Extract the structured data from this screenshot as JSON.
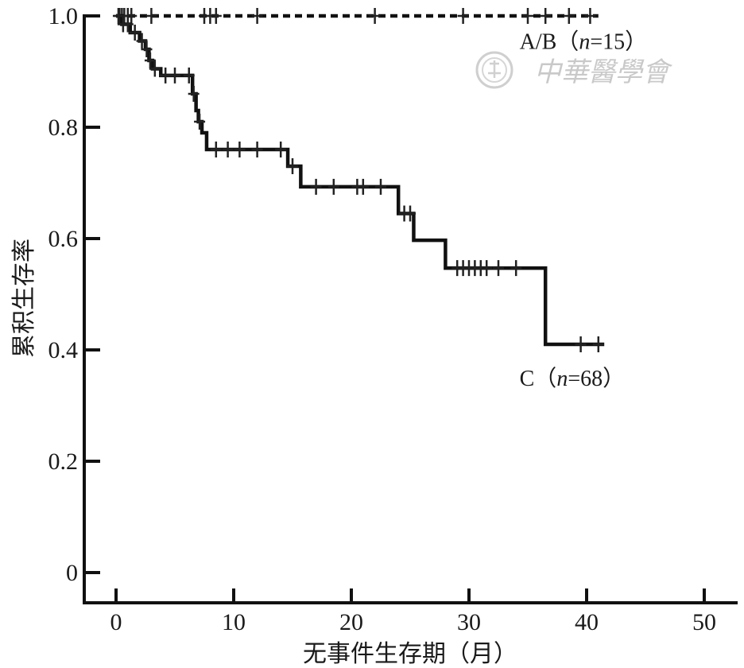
{
  "chart_data": {
    "type": "line",
    "subtype": "kaplan-meier",
    "xlabel": "无事件生存期（月）",
    "ylabel": "累积生存率",
    "xlim": [
      -2,
      51
    ],
    "ylim": [
      -0.06,
      1.0
    ],
    "x_ticks": [
      0,
      10,
      20,
      30,
      40,
      50
    ],
    "x_tick_labels": [
      "0",
      "10",
      "20",
      "30",
      "40",
      "50"
    ],
    "y_ticks": [
      0,
      0.2,
      0.4,
      0.6,
      0.8,
      1.0
    ],
    "y_tick_labels": [
      "0",
      "0.2",
      "0.4",
      "0.6",
      "0.8",
      "1.0"
    ],
    "grid": false,
    "series": [
      {
        "name": "A/B（n=15）",
        "line_style": "dashed",
        "color": "#111111",
        "steps": [
          [
            0,
            1.0
          ],
          [
            41,
            1.0
          ]
        ],
        "censored": [
          [
            0.3,
            1.0
          ],
          [
            0.5,
            1.0
          ],
          [
            0.7,
            1.0
          ],
          [
            1.0,
            1.0
          ],
          [
            1.3,
            1.0
          ],
          [
            3.0,
            1.0
          ],
          [
            7.5,
            1.0
          ],
          [
            8.0,
            1.0
          ],
          [
            8.5,
            1.0
          ],
          [
            12,
            1.0
          ],
          [
            22,
            1.0
          ],
          [
            29.5,
            1.0
          ],
          [
            35,
            1.0
          ],
          [
            36.5,
            1.0
          ],
          [
            38.5,
            1.0
          ],
          [
            40.3,
            1.0
          ]
        ]
      },
      {
        "name": "C（n=68）",
        "line_style": "solid",
        "color": "#111111",
        "steps": [
          [
            0,
            1.0
          ],
          [
            0.5,
            0.985
          ],
          [
            1.2,
            0.97
          ],
          [
            2.0,
            0.955
          ],
          [
            2.5,
            0.94
          ],
          [
            2.8,
            0.92
          ],
          [
            3.1,
            0.905
          ],
          [
            3.8,
            0.893
          ],
          [
            6.5,
            0.86
          ],
          [
            6.8,
            0.83
          ],
          [
            7.0,
            0.81
          ],
          [
            7.3,
            0.79
          ],
          [
            7.7,
            0.76
          ],
          [
            14.6,
            0.73
          ],
          [
            15.7,
            0.693
          ],
          [
            24.0,
            0.645
          ],
          [
            25.3,
            0.597
          ],
          [
            28.0,
            0.547
          ],
          [
            36.5,
            0.41
          ],
          [
            41.5,
            0.41
          ]
        ],
        "censored": [
          [
            0.2,
            1.0
          ],
          [
            0.6,
            0.985
          ],
          [
            1.0,
            0.985
          ],
          [
            1.6,
            0.97
          ],
          [
            2.2,
            0.955
          ],
          [
            2.6,
            0.94
          ],
          [
            2.9,
            0.92
          ],
          [
            3.3,
            0.905
          ],
          [
            4.2,
            0.893
          ],
          [
            5.0,
            0.893
          ],
          [
            6.2,
            0.893
          ],
          [
            6.6,
            0.86
          ],
          [
            7.1,
            0.81
          ],
          [
            8.5,
            0.76
          ],
          [
            9.5,
            0.76
          ],
          [
            10.5,
            0.76
          ],
          [
            12.0,
            0.76
          ],
          [
            14.0,
            0.76
          ],
          [
            15.0,
            0.73
          ],
          [
            17.0,
            0.693
          ],
          [
            18.5,
            0.693
          ],
          [
            20.5,
            0.693
          ],
          [
            21.0,
            0.693
          ],
          [
            22.5,
            0.693
          ],
          [
            24.5,
            0.645
          ],
          [
            25.0,
            0.645
          ],
          [
            29.0,
            0.547
          ],
          [
            29.5,
            0.547
          ],
          [
            30.0,
            0.547
          ],
          [
            30.5,
            0.547
          ],
          [
            31.0,
            0.547
          ],
          [
            31.5,
            0.547
          ],
          [
            32.5,
            0.547
          ],
          [
            34.0,
            0.547
          ],
          [
            39.5,
            0.41
          ],
          [
            41.0,
            0.41
          ]
        ]
      }
    ],
    "series_labels": [
      {
        "prefix": "A/B（",
        "var": "n",
        "suffix": "=15）",
        "x": 34.3,
        "y": 0.955
      },
      {
        "prefix": "C（",
        "var": "n",
        "suffix": "=68）",
        "x": 34.3,
        "y": 0.35
      }
    ]
  },
  "watermark": {
    "text": "中華醫學會",
    "icon": "society-seal-icon"
  }
}
